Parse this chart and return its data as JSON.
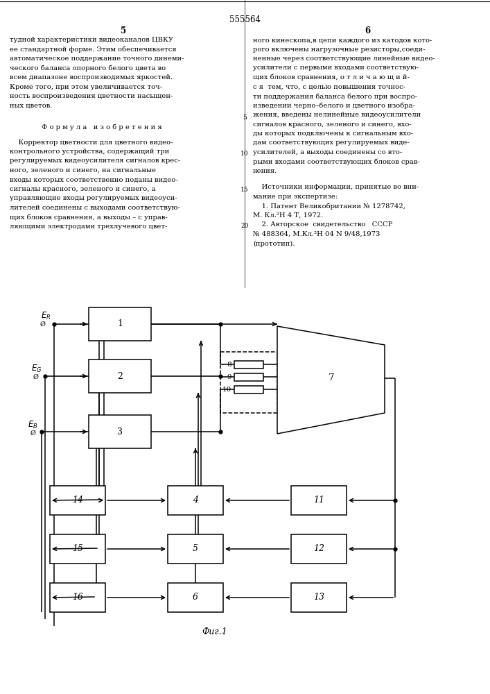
{
  "bg_color": "#ffffff",
  "line_color": "#000000",
  "title": "555564",
  "page_l": "5",
  "page_r": "6",
  "fig_label": "Фиг.1",
  "left_col": [
    "тудной характеристики видеоканалов ЦВКУ",
    "ее стандартной форме. Этим обеспечивается",
    "автоматическое поддержание точного динеми-",
    "ческого баланса опорного белого цвета во",
    "всем диапазоне воспроизводимых яркостей.",
    "Кроме того, при этом увеличивается точ-",
    "ность воспроизведения цветности насыщен-",
    "ных цветов."
  ],
  "right_col": [
    "ного кинескопа,в цепи каждого из катодов кото-",
    "рого включены нагрузочные резисторы,соеди-",
    "ненные через соответствующие линейные видео-",
    "усилители с первыми входами соответствую-",
    "щих блоков сравнения, о т л и ч а ю щ и й-",
    "с я  тем, что, с целью повышения точнос-",
    "ти поддержания баланса белого при воспро-",
    "изведении черно–белого и цветного изобра-",
    "жения, введены нелинейные видеоусилители",
    "сигналов красного, зеленого и синего, вхо-",
    "ды которых подключены к сигнальным вхо-",
    "дам соответствующих регулируемых виде-",
    "усилителей, а выходы соединены со вто-",
    "рыми входами соответствующих блоков срав-",
    "нения."
  ],
  "formula_heading": "Ф о р м у л а   и з о б р е т е н и я",
  "formula_lines": [
    "    Корректор цветности для цветного видео-",
    "контрольного устройства, содержащий три",
    "регулируемых видеоусилителя сигналов крес-",
    "ного, зеленого и синего, на сигнальные",
    "входы которых соответственно поданы видео-",
    "сигналы красного, зеленого и синего, а",
    "управляющие входы регулируемых видеоуси-",
    "лителей соединены с выходами соответствую-",
    "щих блоков сравнения, а выходы – с управ-",
    "ляющими электродами трехлучевого цвет-"
  ],
  "sources_heading": "    Источники информации, принятые во вни-",
  "sources_lines": [
    "мание при экспертизе:",
    "    1. Патент Великобритании № 1278742,",
    "М. Кл.²Н 4 Т, 1972.",
    "    2. Авторское  свидетельство   СССР",
    "№ 488364, М.Кл.²Н 04 N 9/48,1973",
    "(прототип)."
  ],
  "line_numbers": [
    "5",
    "10",
    "15",
    "20"
  ]
}
